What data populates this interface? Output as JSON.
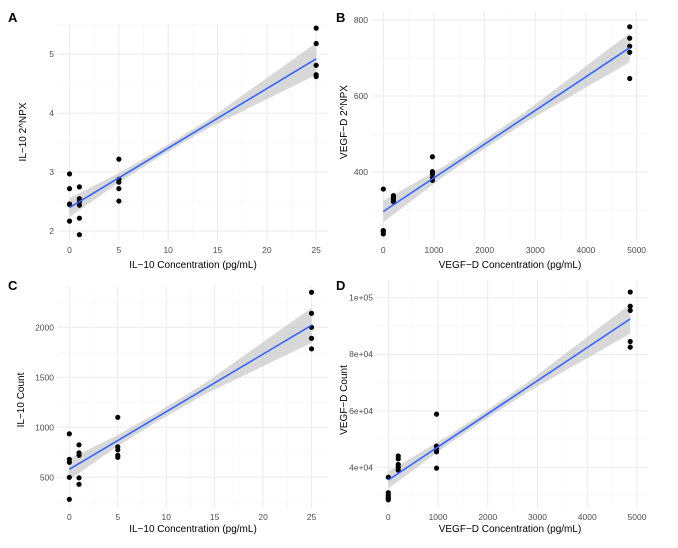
{
  "chart_data": [
    {
      "panel": "A",
      "type": "scatter",
      "xlabel": "IL−10 Concentration (pg/mL)",
      "ylabel": "IL−10 2^NPX",
      "xlim": [
        -1.17,
        26.2
      ],
      "ylim": [
        1.85,
        5.51
      ],
      "xticks": [
        0,
        5,
        10,
        15,
        20,
        25
      ],
      "xtick_labels": [
        "0",
        "5",
        "10",
        "15",
        "20",
        "25"
      ],
      "yticks": [
        2,
        3,
        4,
        5
      ],
      "ytick_labels": [
        "2",
        "3",
        "4",
        "5"
      ],
      "grid": true,
      "points": [
        [
          0,
          2.97
        ],
        [
          0,
          2.72
        ],
        [
          0,
          2.46
        ],
        [
          0,
          2.45
        ],
        [
          0,
          2.17
        ],
        [
          1,
          2.75
        ],
        [
          1,
          2.55
        ],
        [
          1,
          2.5
        ],
        [
          1,
          2.44
        ],
        [
          1,
          2.22
        ],
        [
          1,
          1.94
        ],
        [
          5,
          3.22
        ],
        [
          5,
          2.88
        ],
        [
          5,
          2.83
        ],
        [
          5,
          2.72
        ],
        [
          5,
          2.51
        ],
        [
          25,
          5.44
        ],
        [
          25,
          5.18
        ],
        [
          25,
          4.81
        ],
        [
          25,
          4.65
        ],
        [
          25,
          4.62
        ]
      ],
      "fit": {
        "x": [
          0,
          25
        ],
        "y": [
          2.4,
          4.92
        ]
      },
      "ci_halfwidth": {
        "x": [
          0,
          5,
          9,
          14,
          25
        ],
        "h": [
          0.16,
          0.08,
          0.06,
          0.07,
          0.27
        ]
      }
    },
    {
      "panel": "B",
      "type": "scatter",
      "xlabel": "VEGF−D Concentration (pg/mL)",
      "ylabel": "VEGF−D 2^NPX",
      "xlim": [
        -223,
        5225
      ],
      "ylim": [
        221,
        821
      ],
      "xticks": [
        0,
        1000,
        2000,
        3000,
        4000,
        5000
      ],
      "xtick_labels": [
        "0",
        "1000",
        "2000",
        "3000",
        "4000",
        "5000"
      ],
      "yticks": [
        400,
        600,
        800
      ],
      "ytick_labels": [
        "400",
        "600",
        "800"
      ],
      "grid": true,
      "points": [
        [
          0,
          355
        ],
        [
          0,
          246
        ],
        [
          0,
          243
        ],
        [
          0,
          237
        ],
        [
          200,
          338
        ],
        [
          200,
          333
        ],
        [
          200,
          327
        ],
        [
          200,
          322
        ],
        [
          970,
          440
        ],
        [
          970,
          401
        ],
        [
          970,
          395
        ],
        [
          970,
          385
        ],
        [
          970,
          378
        ],
        [
          4864,
          782
        ],
        [
          4864,
          752
        ],
        [
          4864,
          731
        ],
        [
          4864,
          715
        ],
        [
          4864,
          646
        ]
      ],
      "fit": {
        "x": [
          0,
          4864
        ],
        "y": [
          296,
          727
        ]
      },
      "ci_halfwidth": {
        "x": [
          0,
          1200,
          2000,
          2800,
          4864
        ],
        "h": [
          28,
          13,
          12,
          14,
          38
        ]
      }
    },
    {
      "panel": "C",
      "type": "scatter",
      "xlabel": "IL−10 Concentration (pg/mL)",
      "ylabel": "IL−10 Count",
      "xlim": [
        -1.17,
        26.7
      ],
      "ylim": [
        193,
        2413
      ],
      "xticks": [
        0,
        5,
        10,
        15,
        20,
        25
      ],
      "xtick_labels": [
        "0",
        "5",
        "10",
        "15",
        "20",
        "25"
      ],
      "yticks": [
        500,
        1000,
        1500,
        2000
      ],
      "ytick_labels": [
        "500",
        "1000",
        "1500",
        "2000"
      ],
      "grid": true,
      "points": [
        [
          0,
          935
        ],
        [
          0,
          680
        ],
        [
          0,
          650
        ],
        [
          0,
          500
        ],
        [
          0,
          280
        ],
        [
          1,
          825
        ],
        [
          1,
          745
        ],
        [
          1,
          720
        ],
        [
          1,
          495
        ],
        [
          1,
          430
        ],
        [
          5,
          1100
        ],
        [
          5,
          805
        ],
        [
          5,
          775
        ],
        [
          5,
          720
        ],
        [
          5,
          700
        ],
        [
          25,
          2350
        ],
        [
          25,
          2140
        ],
        [
          25,
          2000
        ],
        [
          25,
          1890
        ],
        [
          25,
          1785
        ]
      ],
      "fit": {
        "x": [
          0,
          25
        ],
        "y": [
          580,
          2020
        ]
      },
      "ci_halfwidth": {
        "x": [
          0,
          5,
          9,
          14,
          25
        ],
        "h": [
          105,
          55,
          45,
          55,
          175
        ]
      }
    },
    {
      "panel": "D",
      "type": "scatter",
      "xlabel": "VEGF−D Concentration (pg/mL)",
      "ylabel": "VEGF−D Count",
      "xlim": [
        -227,
        5221
      ],
      "ylim": [
        25600,
        106260
      ],
      "xticks": [
        0,
        1000,
        2000,
        3000,
        4000,
        5000
      ],
      "xtick_labels": [
        "0",
        "1000",
        "2000",
        "3000",
        "4000",
        "5000"
      ],
      "yticks": [
        40000,
        60000,
        80000,
        100000
      ],
      "ytick_labels": [
        "4e+04",
        "6e+04",
        "8e+04",
        "1e+05"
      ],
      "grid": true,
      "points": [
        [
          0,
          36500
        ],
        [
          0,
          31000
        ],
        [
          0,
          30200
        ],
        [
          0,
          29500
        ],
        [
          0,
          29000
        ],
        [
          0,
          28500
        ],
        [
          200,
          44000
        ],
        [
          200,
          43000
        ],
        [
          200,
          41000
        ],
        [
          200,
          40000
        ],
        [
          200,
          39000
        ],
        [
          970,
          58800
        ],
        [
          970,
          47500
        ],
        [
          970,
          46500
        ],
        [
          970,
          45500
        ],
        [
          970,
          39700
        ],
        [
          4864,
          102000
        ],
        [
          4864,
          97000
        ],
        [
          4864,
          95500
        ],
        [
          4864,
          84500
        ],
        [
          4864,
          82500
        ]
      ],
      "fit": {
        "x": [
          0,
          4864
        ],
        "y": [
          35500,
          92500
        ]
      },
      "ci_halfwidth": {
        "x": [
          0,
          1200,
          2000,
          2800,
          4864
        ],
        "h": [
          3000,
          1500,
          1400,
          1700,
          5200
        ]
      }
    }
  ],
  "colors": {
    "fit": "#3366FF",
    "band": "#BEBEBE",
    "point": "#000000",
    "grid_major": "#EBEBEB",
    "grid_minor": "#F5F5F5"
  }
}
